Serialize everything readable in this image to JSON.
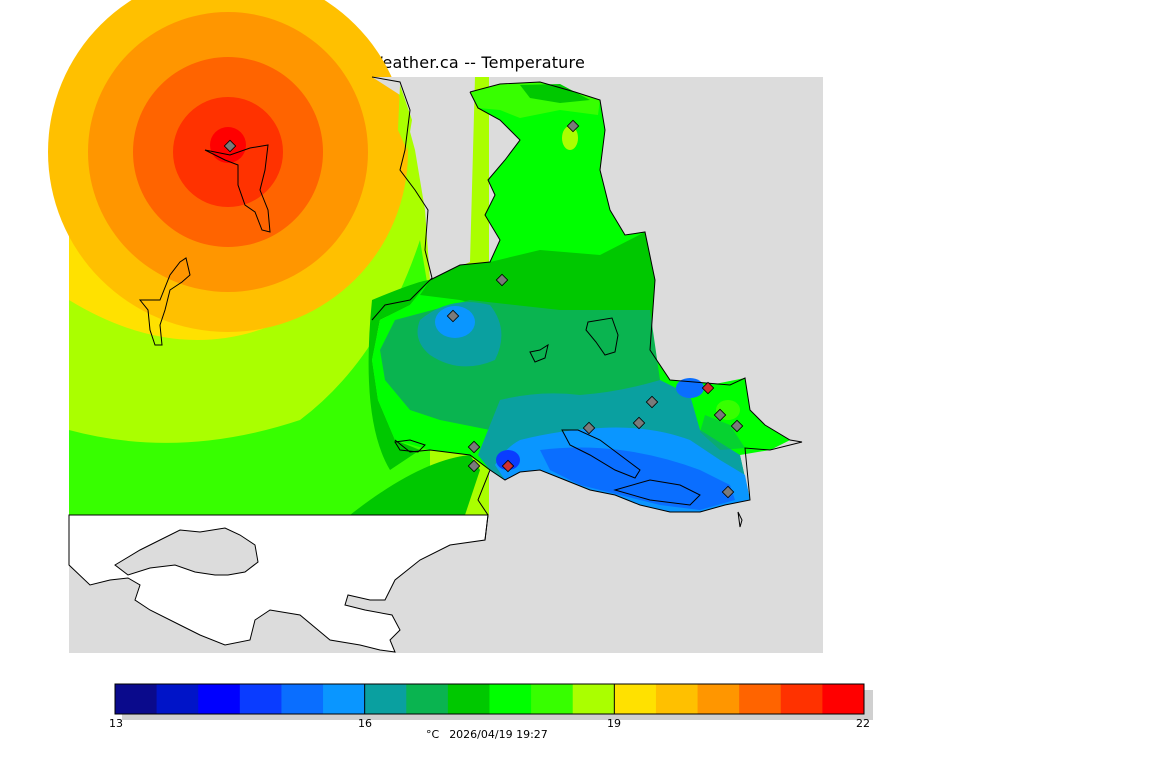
{
  "title": "VictoriaWeather.ca -- Temperature",
  "colorbar": {
    "min": 13,
    "max": 22,
    "tick_labels": [
      "13",
      "16",
      "19",
      "22"
    ],
    "colors": [
      "#0a0a8c",
      "#0014c8",
      "#0000ff",
      "#0a3cff",
      "#0a6eff",
      "#0a96ff",
      "#0aa0a0",
      "#0ab450",
      "#00c800",
      "#00ff00",
      "#37ff00",
      "#aaff00",
      "#ffe100",
      "#ffc000",
      "#ff9600",
      "#ff6400",
      "#ff3200",
      "#ff0000"
    ]
  },
  "units": "°C",
  "timestamp": "2026/04/19 19:27",
  "colors": {
    "land_outside": "#dcdcdc",
    "water_outside": "#ffffff",
    "coastline": "#000000",
    "station_marker": "#7a7a7a",
    "station_marker_highlight": "#d03030"
  }
}
